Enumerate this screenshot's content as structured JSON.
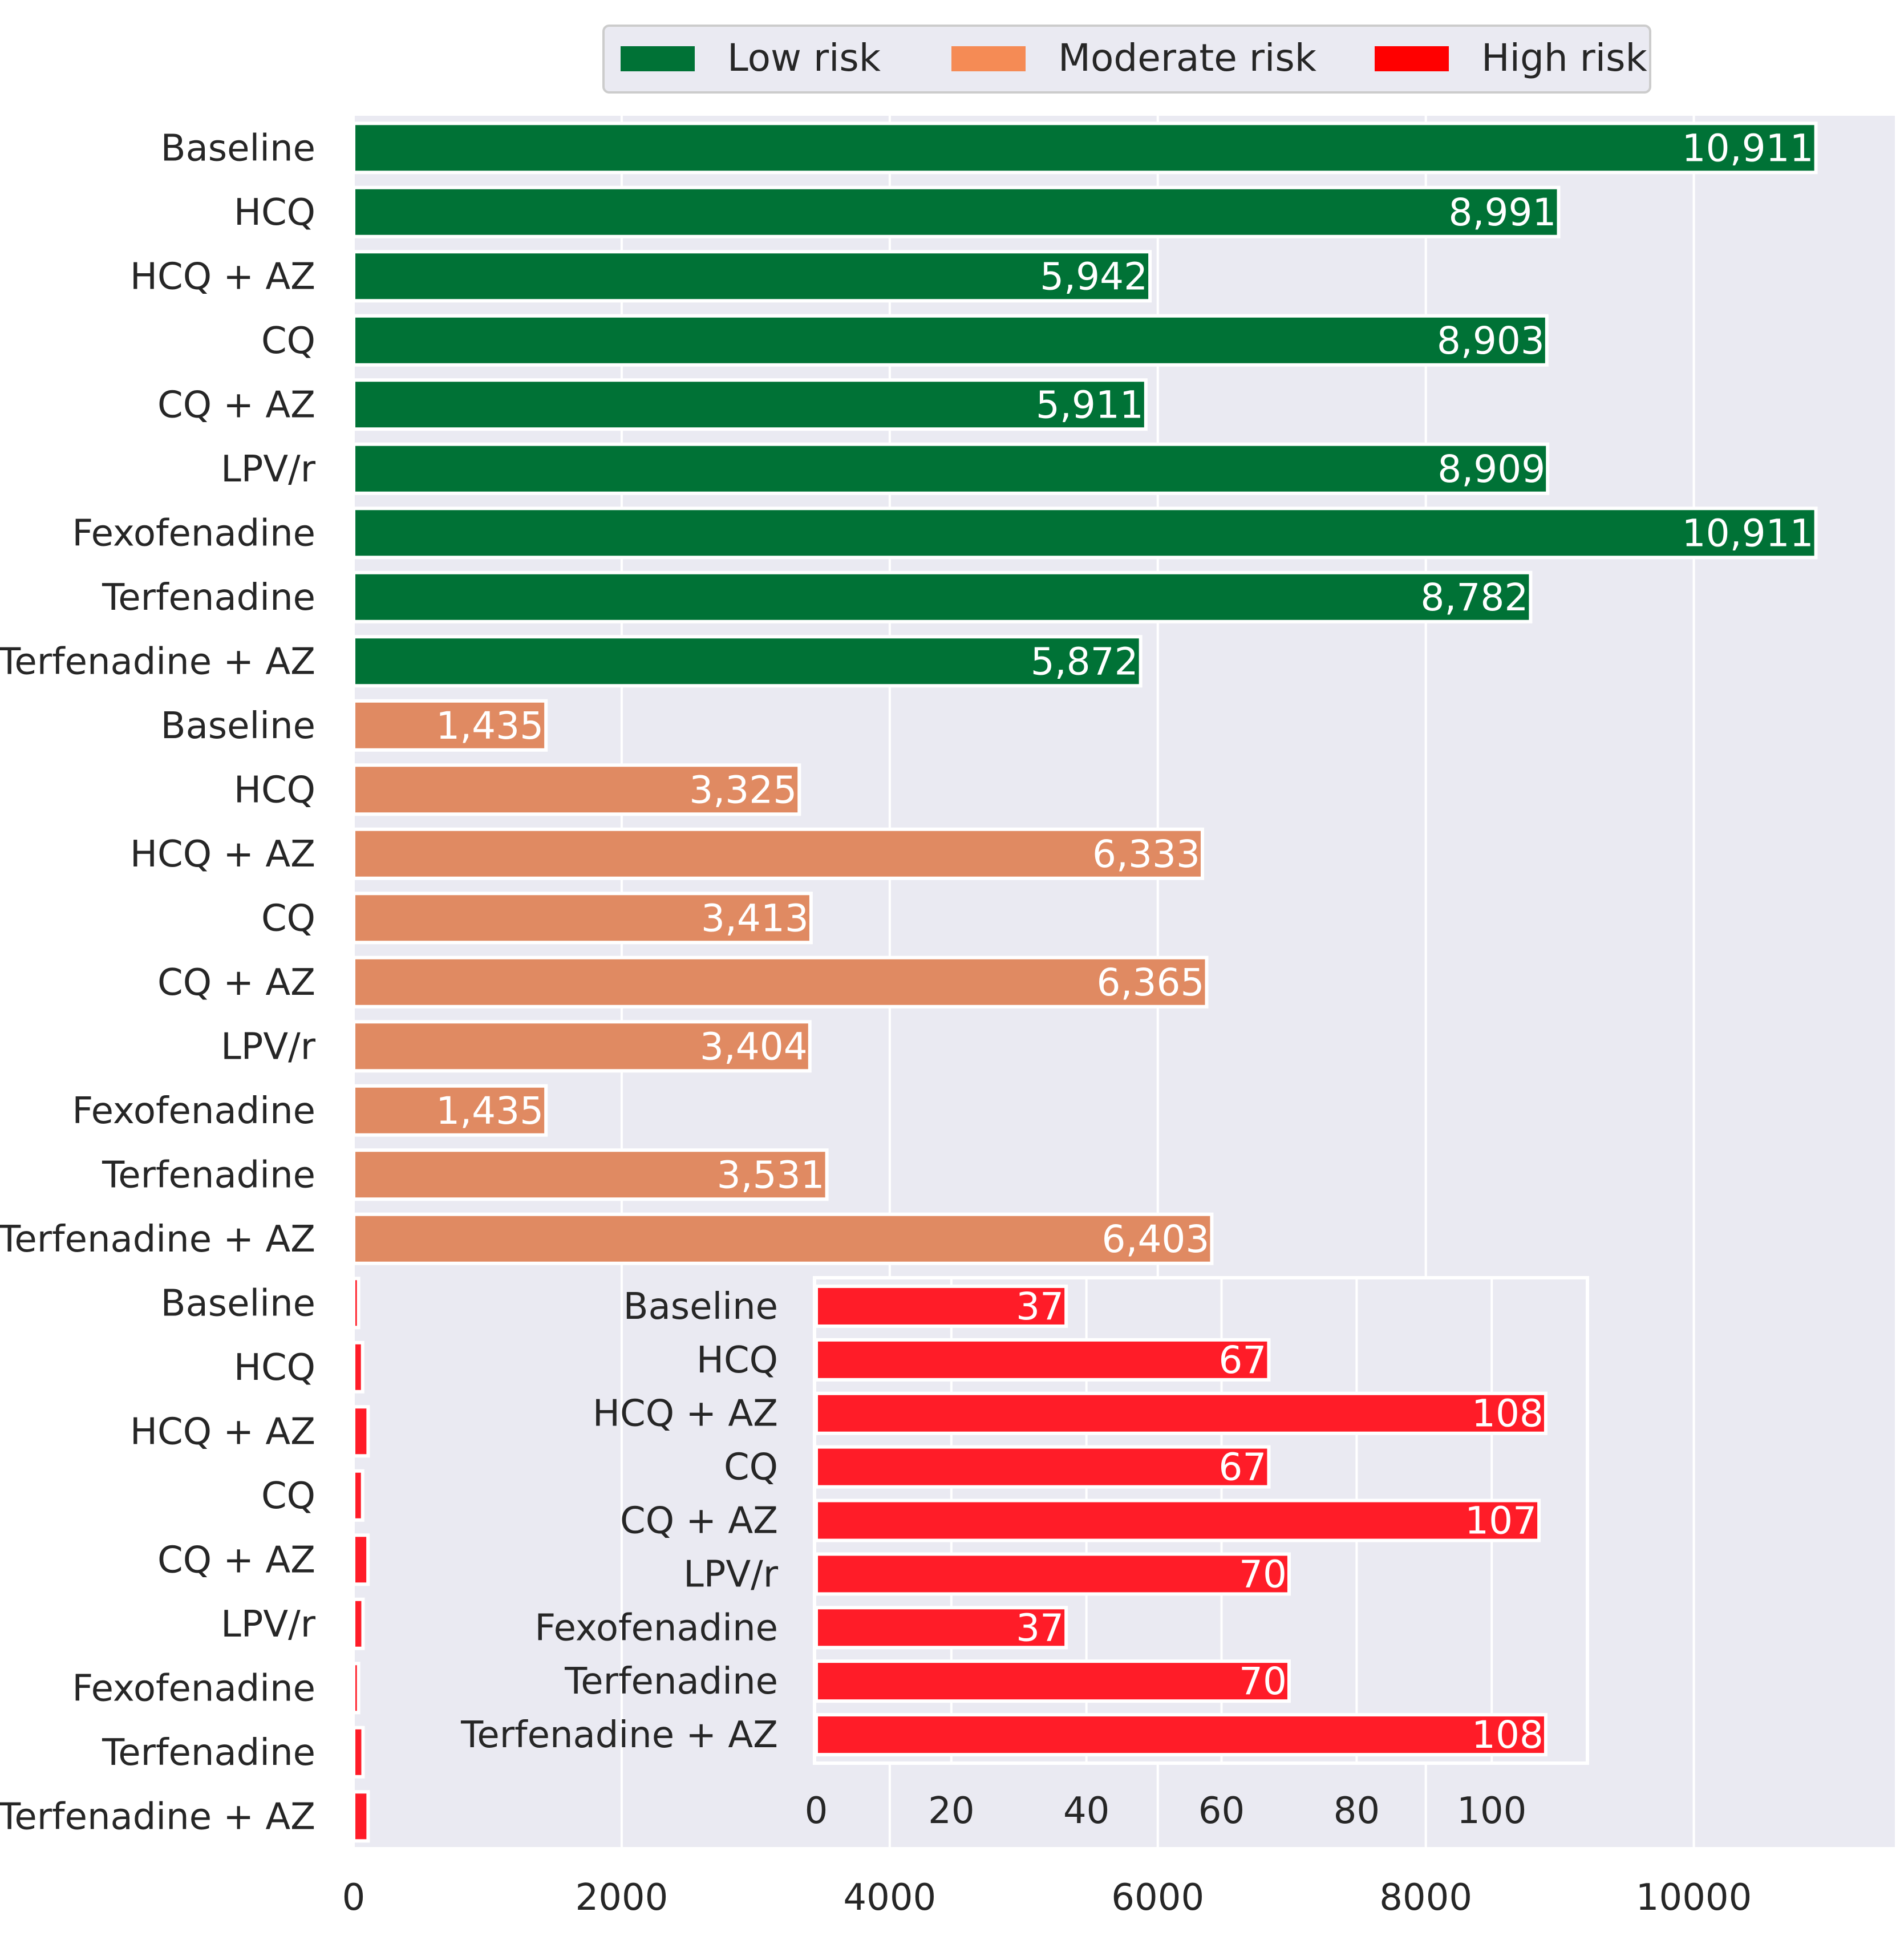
{
  "chart_data": [
    {
      "type": "bar",
      "orientation": "horizontal",
      "title": "",
      "xlabel": "",
      "ylabel": "",
      "xlim": [
        0,
        11500
      ],
      "xticks": [
        0,
        2000,
        4000,
        6000,
        8000,
        10000
      ],
      "grid": true,
      "legend_position": "top-center",
      "series": [
        {
          "name": "Low risk",
          "color": "#007236",
          "categories": [
            "Baseline",
            "HCQ",
            "HCQ + AZ",
            "CQ",
            "CQ + AZ",
            "LPV/r",
            "Fexofenadine",
            "Terfenadine",
            "Terfenadine + AZ"
          ],
          "values": [
            10911,
            8991,
            5942,
            8903,
            5911,
            8909,
            10911,
            8782,
            5872
          ],
          "labels": [
            "10,911",
            "8,991",
            "5,942",
            "8,903",
            "5,911",
            "8,909",
            "10,911",
            "8,782",
            "5,872"
          ]
        },
        {
          "name": "Moderate risk",
          "color": "#e08a62",
          "legend_color": "#f58b55",
          "categories": [
            "Baseline",
            "HCQ",
            "HCQ + AZ",
            "CQ",
            "CQ + AZ",
            "LPV/r",
            "Fexofenadine",
            "Terfenadine",
            "Terfenadine + AZ"
          ],
          "values": [
            1435,
            3325,
            6333,
            3413,
            6365,
            3404,
            1435,
            3531,
            6403
          ],
          "labels": [
            "1,435",
            "3,325",
            "6,333",
            "3,413",
            "6,365",
            "3,404",
            "1,435",
            "3,531",
            "6,403"
          ]
        },
        {
          "name": "High risk",
          "color": "#ff1c28",
          "legend_color": "#ff0000",
          "categories": [
            "Baseline",
            "HCQ",
            "HCQ + AZ",
            "CQ",
            "CQ + AZ",
            "LPV/r",
            "Fexofenadine",
            "Terfenadine",
            "Terfenadine + AZ"
          ],
          "values": [
            37,
            67,
            108,
            67,
            107,
            70,
            37,
            70,
            108
          ]
        }
      ]
    },
    {
      "type": "bar",
      "orientation": "horizontal",
      "role": "inset",
      "title": "",
      "xlim": [
        0,
        114
      ],
      "xticks": [
        0,
        20,
        40,
        60,
        80,
        100
      ],
      "grid": true,
      "series": [
        {
          "name": "High risk",
          "color": "#ff1c28",
          "categories": [
            "Baseline",
            "HCQ",
            "HCQ + AZ",
            "CQ",
            "CQ + AZ",
            "LPV/r",
            "Fexofenadine",
            "Terfenadine",
            "Terfenadine + AZ"
          ],
          "values": [
            37,
            67,
            108,
            67,
            107,
            70,
            37,
            70,
            108
          ],
          "labels": [
            "37",
            "67",
            "108",
            "67",
            "107",
            "70",
            "37",
            "70",
            "108"
          ]
        }
      ]
    }
  ]
}
